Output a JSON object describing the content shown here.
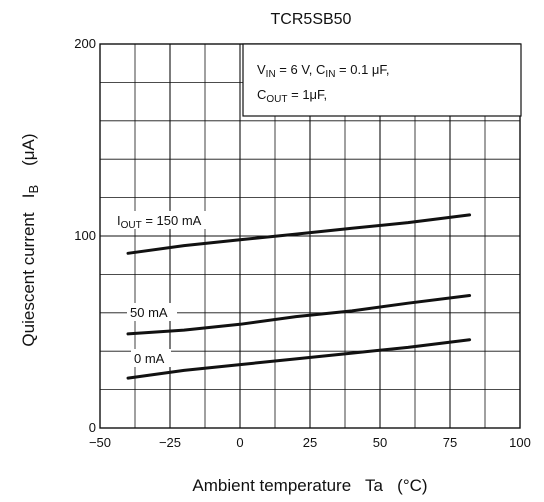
{
  "chart_data": {
    "type": "line",
    "title": "TCR5SB50",
    "xlabel": "Ambient temperature   Ta   (°C)",
    "ylabel": "Quiescent current   I",
    "ylabel_sub": "B",
    "ylabel_unit": "(μA)",
    "xlim": [
      -50,
      100
    ],
    "ylim": [
      0,
      200
    ],
    "xticks": [
      -50,
      -25,
      0,
      25,
      50,
      75,
      100
    ],
    "xtick_labels": [
      "−50",
      "−25",
      "0",
      "25",
      "50",
      "75",
      "100"
    ],
    "yticks": [
      0,
      100,
      200
    ],
    "ytick_labels": [
      "0",
      "100",
      "200"
    ],
    "grid": true,
    "conditions": {
      "line1": {
        "v": "V",
        "v_sub": "IN",
        "v_rest": " = 6 V, C",
        "c_sub": "IN",
        "c_rest": " = 0.1 μF,"
      },
      "line2": {
        "c": "C",
        "c_sub": "OUT",
        "c_rest": " = 1μF,"
      }
    },
    "series": [
      {
        "name": "I_OUT = 150 mA",
        "label_main": "I",
        "label_sub": "OUT",
        "label_rest": " = 150 mA",
        "x": [
          -40,
          -20,
          0,
          20,
          40,
          60,
          82
        ],
        "y": [
          91,
          95,
          98,
          101,
          104,
          107,
          111
        ]
      },
      {
        "name": "50 mA",
        "label_main": "50 mA",
        "x": [
          -40,
          -20,
          0,
          20,
          40,
          60,
          82
        ],
        "y": [
          49,
          51,
          54,
          58,
          61,
          65,
          69
        ]
      },
      {
        "name": "0 mA",
        "label_main": "0 mA",
        "x": [
          -40,
          -20,
          0,
          20,
          40,
          60,
          82
        ],
        "y": [
          26,
          30,
          33,
          36,
          39,
          42,
          46
        ]
      }
    ]
  }
}
